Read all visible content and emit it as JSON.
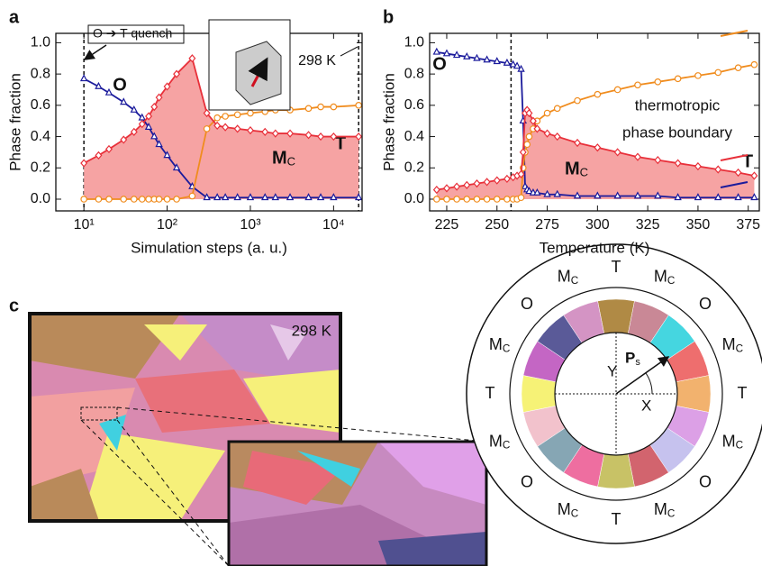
{
  "chart_data": [
    {
      "type": "line",
      "panel_label": "a",
      "xlabel": "Simulation steps (a. u.)",
      "ylabel": "Phase fraction",
      "xscale": "log",
      "xlim": [
        4.6,
        22000
      ],
      "ylim": [
        -0.075,
        1.06
      ],
      "xticks": [
        {
          "value": 10,
          "label": "10¹"
        },
        {
          "value": 100,
          "label": "10²"
        },
        {
          "value": 1000,
          "label": "10³"
        },
        {
          "value": 10000,
          "label": "10⁴"
        }
      ],
      "yticks": [
        {
          "value": 0,
          "label": "0.0"
        },
        0.2,
        0.4,
        0.6,
        0.8,
        {
          "value": 1,
          "label": "1.0"
        }
      ],
      "vlines": [
        10,
        20000
      ],
      "x": [
        10,
        15,
        20,
        30,
        40,
        50,
        60,
        70,
        80,
        100,
        130,
        200,
        300,
        400,
        500,
        700,
        1000,
        1500,
        2000,
        3000,
        5000,
        7000,
        10000,
        20000
      ],
      "series": [
        {
          "name": "O",
          "color": "#1b1b9c",
          "marker": "triangle",
          "values": [
            0.77,
            0.72,
            0.68,
            0.62,
            0.57,
            0.52,
            0.46,
            0.4,
            0.35,
            0.28,
            0.2,
            0.08,
            0.01,
            0.01,
            0.01,
            0.01,
            0.01,
            0.01,
            0.01,
            0.01,
            0.01,
            0.01,
            0.01,
            0.01
          ]
        },
        {
          "name": "T",
          "color": "#f08c1e",
          "marker": "circle",
          "values": [
            0,
            0,
            0,
            0,
            0,
            0,
            0,
            0,
            0,
            0,
            0,
            0.02,
            0.45,
            0.52,
            0.53,
            0.54,
            0.55,
            0.56,
            0.57,
            0.57,
            0.58,
            0.59,
            0.59,
            0.6
          ]
        },
        {
          "name": "MC",
          "color": "#e8303a",
          "fill": "#f6a3a3",
          "marker": "diamond",
          "values": [
            0.23,
            0.28,
            0.32,
            0.38,
            0.43,
            0.48,
            0.53,
            0.59,
            0.65,
            0.72,
            0.8,
            0.9,
            0.55,
            0.47,
            0.46,
            0.45,
            0.44,
            0.43,
            0.42,
            0.42,
            0.41,
            0.4,
            0.4,
            0.4
          ]
        }
      ],
      "annotations": [
        "O ➔ T quench",
        "298 K",
        "O",
        "MC",
        "T"
      ]
    },
    {
      "type": "line",
      "panel_label": "b",
      "xlabel": "Temperature (K)",
      "ylabel": "Phase fraction",
      "xscale": "linear",
      "xlim": [
        216.5,
        380.5
      ],
      "ylim": [
        -0.075,
        1.06
      ],
      "xticks": [
        225,
        250,
        275,
        300,
        325,
        350,
        375
      ],
      "yticks": [
        {
          "value": 0,
          "label": "0.0"
        },
        0.2,
        0.4,
        0.6,
        0.8,
        {
          "value": 1,
          "label": "1.0"
        }
      ],
      "vlines": [
        257
      ],
      "x": [
        220,
        225,
        230,
        235,
        240,
        245,
        250,
        255,
        258,
        260,
        262,
        263,
        264,
        265,
        266,
        268,
        270,
        275,
        280,
        290,
        300,
        310,
        320,
        330,
        340,
        350,
        360,
        370,
        378
      ],
      "series": [
        {
          "name": "O",
          "color": "#1b1b9c",
          "marker": "triangle",
          "values": [
            0.94,
            0.93,
            0.92,
            0.91,
            0.9,
            0.89,
            0.88,
            0.87,
            0.86,
            0.85,
            0.83,
            0.5,
            0.08,
            0.06,
            0.05,
            0.04,
            0.04,
            0.03,
            0.03,
            0.02,
            0.02,
            0.02,
            0.02,
            0.02,
            0.01,
            0.01,
            0.01,
            0.01,
            0.01
          ]
        },
        {
          "name": "T",
          "color": "#f08c1e",
          "marker": "circle",
          "values": [
            0,
            0,
            0,
            0,
            0,
            0,
            0,
            0,
            0,
            0,
            0.01,
            0.2,
            0.3,
            0.35,
            0.4,
            0.45,
            0.5,
            0.55,
            0.58,
            0.63,
            0.67,
            0.7,
            0.73,
            0.75,
            0.77,
            0.79,
            0.81,
            0.84,
            0.86
          ]
        },
        {
          "name": "MC",
          "color": "#e8303a",
          "fill": "#f6a3a3",
          "marker": "diamond",
          "values": [
            0.06,
            0.07,
            0.08,
            0.09,
            0.1,
            0.11,
            0.12,
            0.13,
            0.14,
            0.15,
            0.16,
            0.3,
            0.55,
            0.57,
            0.55,
            0.5,
            0.45,
            0.42,
            0.4,
            0.36,
            0.33,
            0.3,
            0.27,
            0.25,
            0.23,
            0.21,
            0.19,
            0.17,
            0.15
          ]
        }
      ],
      "annotations": [
        "thermotropic",
        "phase boundary"
      ]
    }
  ],
  "panel_c": {
    "panel_label": "c",
    "temperature": "298 K",
    "wheel": {
      "labels": [
        "T",
        "MC",
        "O",
        "MC",
        "T",
        "MC",
        "O",
        "MC",
        "T",
        "MC",
        "O",
        "MC",
        "T",
        "MC",
        "O",
        "MC"
      ],
      "colors": [
        "#b08a45",
        "#c98896",
        "#45d6e0",
        "#ee6e6e",
        "#f2b26e",
        "#dca0e6",
        "#c6c2ee",
        "#d2646e",
        "#c8c266",
        "#ee6ea0",
        "#86a6b4",
        "#f2c2cc",
        "#f6f276",
        "#c466c4",
        "#5a5a98",
        "#d494c4"
      ],
      "x_label": "X",
      "y_label": "Y",
      "vector_label": "Ps"
    }
  }
}
